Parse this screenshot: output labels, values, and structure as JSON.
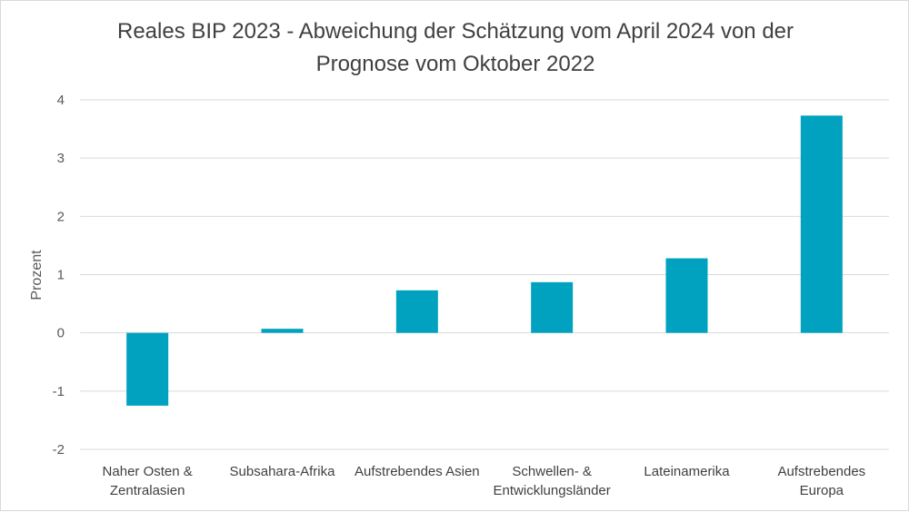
{
  "chart_data": {
    "type": "bar",
    "title": "Reales BIP 2023 - Abweichung der Schätzung vom April 2024 von der Prognose vom Oktober 2022",
    "title_lines": [
      "Reales BIP 2023 - Abweichung der Schätzung vom April 2024 von der",
      "Prognose vom Oktober 2022"
    ],
    "xlabel": "",
    "ylabel": "Prozent",
    "ylim": [
      -2,
      4
    ],
    "yticks": [
      -2,
      -1,
      0,
      1,
      2,
      3,
      4
    ],
    "grid": true,
    "legend": "none",
    "bar_color": "#00A2BF",
    "categories": [
      [
        "Naher Osten &",
        "Zentralasien"
      ],
      [
        "Subsahara-Afrika"
      ],
      [
        "Aufstrebendes Asien"
      ],
      [
        "Schwellen- &",
        "Entwicklungsländer"
      ],
      [
        "Lateinamerika"
      ],
      [
        "Aufstrebendes",
        "Europa"
      ]
    ],
    "values": [
      -1.25,
      0.07,
      0.73,
      0.87,
      1.28,
      3.73
    ]
  }
}
